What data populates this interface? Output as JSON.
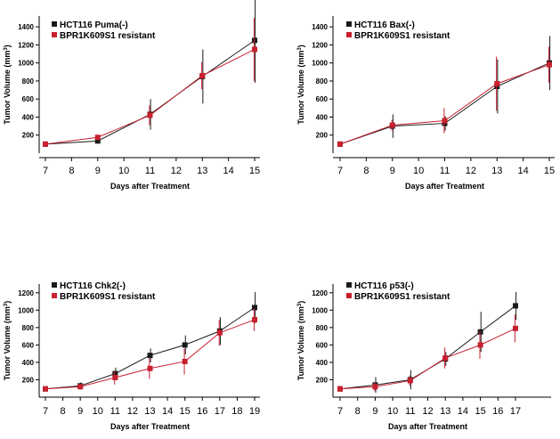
{
  "colors": {
    "black_series": "#1a1a1a",
    "red_series": "#c8202f",
    "axis": "#000000"
  },
  "chart_data": [
    {
      "type": "line",
      "ylabel": "Tumor Volume (mm",
      "ylabel_sup": "3",
      "ylabel_close": ")",
      "xlabel": "Days after Treatment",
      "x_ticks": [
        "7",
        "8",
        "9",
        "10",
        "11",
        "12",
        "13",
        "14",
        "15"
      ],
      "y_ticks": [
        "200",
        "400",
        "600",
        "800",
        "1000",
        "1200",
        "1400"
      ],
      "xlim": [
        7,
        15
      ],
      "ylim": [
        0,
        1520
      ],
      "legend": "top-left",
      "series": [
        {
          "name": "HCT116 Puma(-)",
          "color": "black",
          "x": [
            7,
            9,
            11,
            13,
            15
          ],
          "y": [
            100,
            135,
            430,
            850,
            1250
          ],
          "err": [
            0,
            0,
            170,
            300,
            470
          ]
        },
        {
          "name": "BPR1K609S1 resistant",
          "color": "red",
          "x": [
            7,
            9,
            11,
            13,
            15
          ],
          "y": [
            100,
            175,
            420,
            860,
            1150
          ],
          "err": [
            0,
            0,
            110,
            150,
            350
          ]
        }
      ]
    },
    {
      "type": "line",
      "ylabel": "Tumor Volume (mm",
      "ylabel_sup": "3",
      "ylabel_close": ")",
      "xlabel": "Days after Treatment",
      "x_ticks": [
        "7",
        "8",
        "9",
        "10",
        "11",
        "12",
        "13",
        "14",
        "15"
      ],
      "y_ticks": [
        "200",
        "400",
        "600",
        "800",
        "1000",
        "1200",
        "1400"
      ],
      "xlim": [
        7,
        15
      ],
      "ylim": [
        0,
        1520
      ],
      "legend": "top-left",
      "series": [
        {
          "name": "HCT116 Bax(-)",
          "color": "black",
          "x": [
            7,
            9,
            11,
            13,
            15
          ],
          "y": [
            100,
            300,
            330,
            740,
            1000
          ],
          "err": [
            0,
            130,
            80,
            300,
            300
          ]
        },
        {
          "name": "BPR1K609S1 resistant",
          "color": "red",
          "x": [
            7,
            9,
            11,
            13,
            15
          ],
          "y": [
            100,
            310,
            360,
            770,
            980
          ],
          "err": [
            0,
            60,
            140,
            300,
            200
          ]
        }
      ]
    },
    {
      "type": "line",
      "ylabel": "Tumor Volume (mm",
      "ylabel_sup": "3",
      "ylabel_close": ")",
      "xlabel": "Days after Treatment",
      "x_ticks": [
        "7",
        "8",
        "9",
        "10",
        "11",
        "12",
        "13",
        "14",
        "15",
        "16",
        "17",
        "18",
        "19"
      ],
      "y_ticks": [
        "200",
        "400",
        "600",
        "800",
        "1000",
        "1200"
      ],
      "xlim": [
        7,
        19
      ],
      "ylim": [
        0,
        1300
      ],
      "legend": "top-left",
      "series": [
        {
          "name": "HCT116 Chk2(-)",
          "color": "black",
          "x": [
            7,
            9,
            11,
            13,
            15,
            17,
            19
          ],
          "y": [
            95,
            130,
            270,
            480,
            600,
            760,
            1030
          ],
          "err": [
            0,
            40,
            70,
            80,
            110,
            160,
            180
          ]
        },
        {
          "name": "BPR1K609S1 resistant",
          "color": "red",
          "x": [
            7,
            9,
            11,
            13,
            15,
            17,
            19
          ],
          "y": [
            95,
            120,
            225,
            330,
            410,
            740,
            890
          ],
          "err": [
            0,
            0,
            80,
            120,
            150,
            150,
            130
          ]
        }
      ]
    },
    {
      "type": "line",
      "ylabel": "Tumor Volume (mm",
      "ylabel_sup": "3",
      "ylabel_close": ")",
      "xlabel": "Days after Treatment",
      "x_ticks": [
        "7",
        "8",
        "9",
        "10",
        "11",
        "12",
        "13",
        "14",
        "15",
        "16",
        "17"
      ],
      "y_ticks": [
        "200",
        "400",
        "600",
        "800",
        "1000",
        "1200"
      ],
      "xlim": [
        7,
        17
      ],
      "ylim": [
        0,
        1300
      ],
      "legend": "top-left",
      "series": [
        {
          "name": "HCT116 p53(-)",
          "color": "black",
          "x": [
            7,
            9,
            11,
            13,
            15,
            17
          ],
          "y": [
            95,
            140,
            200,
            440,
            750,
            1050
          ],
          "err": [
            0,
            90,
            110,
            80,
            230,
            160
          ]
        },
        {
          "name": "BPR1K609S1 resistant",
          "color": "red",
          "x": [
            7,
            9,
            11,
            13,
            15,
            17
          ],
          "y": [
            95,
            120,
            190,
            450,
            600,
            790
          ],
          "err": [
            0,
            50,
            60,
            120,
            160,
            160
          ]
        }
      ]
    }
  ]
}
